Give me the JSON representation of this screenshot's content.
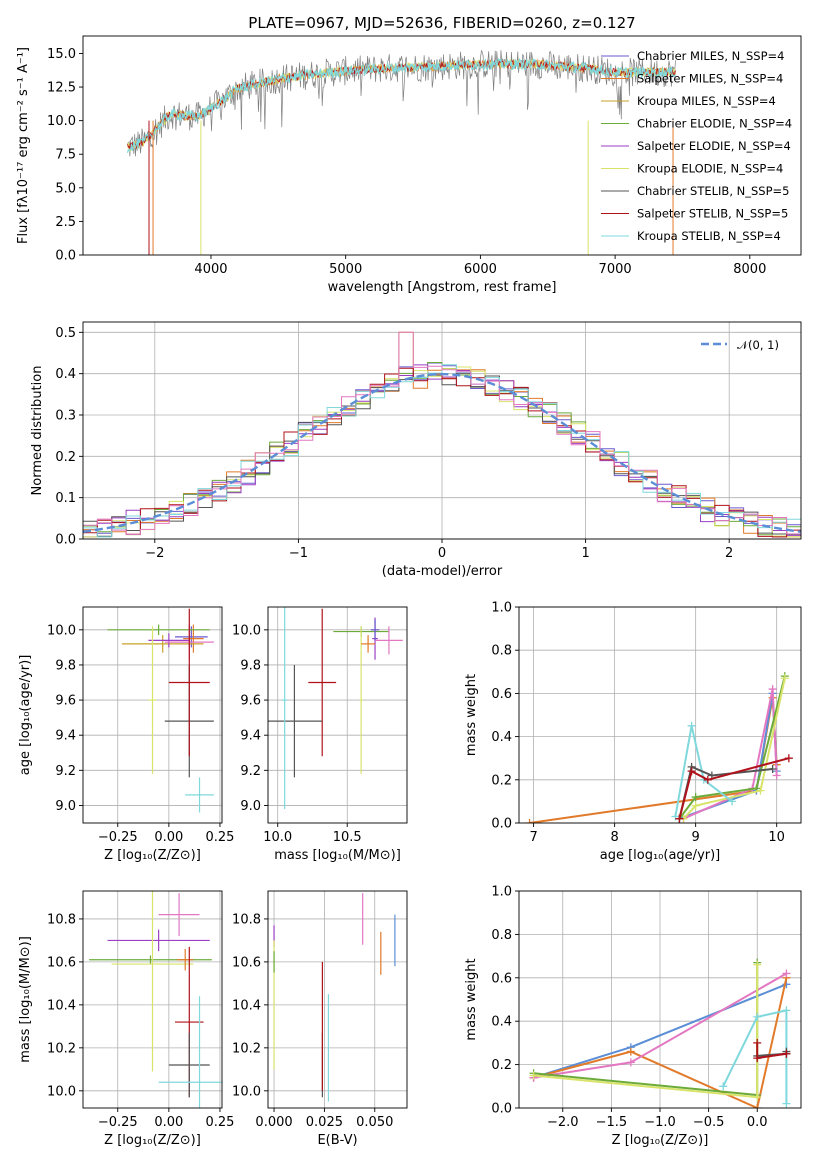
{
  "colors": {
    "cm": "#6a5acd",
    "sm": "#e17a2a",
    "km": "#c8a02a",
    "ce": "#6cab3a",
    "se": "#9b3fc4",
    "ke": "#d8e36a",
    "cs": "#555555",
    "ss": "#b0121b",
    "ks": "#7fd8dc",
    "pink": "#e377c2",
    "blue": "#5b8ed6",
    "normal": "#5b8ed6",
    "gray_spec": "#7f7f7f"
  },
  "chart_data": [
    {
      "id": "spectrum",
      "type": "line",
      "title": "PLATE=0967, MJD=52636, FIBERID=0260, z=0.127",
      "xlabel": "wavelength [Angstrom, rest frame]",
      "ylabel": "Flux [fλ10⁻¹⁷ erg cm⁻² s⁻¹ A⁻¹]",
      "xlim": [
        3050,
        8380
      ],
      "ylim": [
        0,
        16.3
      ],
      "xticks": [
        "4000",
        "5000",
        "6000",
        "7000",
        "8000"
      ],
      "xtick_vals": [
        4000,
        5000,
        6000,
        7000,
        8000
      ],
      "yticks": [
        "0.0",
        "2.5",
        "5.0",
        "7.5",
        "10.0",
        "12.5",
        "15.0"
      ],
      "ytick_vals": [
        0,
        2.5,
        5,
        7.5,
        10,
        12.5,
        15
      ],
      "continuum_x": [
        3380,
        3500,
        3700,
        3900,
        4000,
        4200,
        4500,
        4800,
        5000,
        5300,
        5600,
        6000,
        6400,
        6800,
        7000,
        7200,
        7450
      ],
      "continuum_y": [
        8.0,
        8.4,
        10.5,
        10.3,
        10.9,
        12.4,
        13.1,
        13.5,
        13.7,
        13.9,
        14.0,
        14.2,
        14.2,
        13.9,
        13.6,
        13.6,
        13.6
      ],
      "series": [
        {
          "name": "Chabrier MILES, N_SSP=4",
          "key": "cm"
        },
        {
          "name": "Salpeter MILES, N_SSP=4",
          "key": "sm"
        },
        {
          "name": "Kroupa MILES, N_SSP=4",
          "key": "km"
        },
        {
          "name": "Chabrier ELODIE, N_SSP=4",
          "key": "ce"
        },
        {
          "name": "Salpeter ELODIE, N_SSP=4",
          "key": "se"
        },
        {
          "name": "Kroupa ELODIE, N_SSP=4",
          "key": "ke"
        },
        {
          "name": "Chabrier STELIB, N_SSP=5",
          "key": "cs"
        },
        {
          "name": "Salpeter STELIB, N_SSP=5",
          "key": "ss"
        },
        {
          "name": "Kroupa STELIB, N_SSP=4",
          "key": "ks"
        }
      ]
    },
    {
      "id": "residuals",
      "type": "line",
      "xlabel": "(data-model)/error",
      "ylabel": "Normed distribution",
      "xlim": [
        -2.5,
        2.5
      ],
      "ylim": [
        0,
        0.525
      ],
      "xticks": [
        "−2",
        "−1",
        "0",
        "1",
        "2"
      ],
      "xtick_vals": [
        -2,
        -1,
        0,
        1,
        2
      ],
      "yticks": [
        "0.0",
        "0.1",
        "0.2",
        "0.3",
        "0.4",
        "0.5"
      ],
      "ytick_vals": [
        0,
        0.1,
        0.2,
        0.3,
        0.4,
        0.5
      ],
      "legend": "𝒩(0, 1)"
    },
    {
      "id": "age_vs_Z",
      "type": "scatter",
      "xlabel": "Z [log₁₀(Z/Z⊙)]",
      "ylabel": "age  [log₁₀(age/yr)]",
      "xlim": [
        -0.42,
        0.26
      ],
      "ylim": [
        8.9,
        10.13
      ],
      "xticks": [
        "−0.25",
        "0.00",
        "0.25"
      ],
      "xtick_vals": [
        -0.25,
        0,
        0.25
      ],
      "yticks": [
        "9.0",
        "9.2",
        "9.4",
        "9.6",
        "9.8",
        "10.0"
      ],
      "ytick_vals": [
        9.0,
        9.2,
        9.4,
        9.6,
        9.8,
        10.0
      ],
      "points": [
        {
          "key": "cm",
          "x": 0.11,
          "y": 9.96,
          "xe": 0.08,
          "ye": 0.06
        },
        {
          "key": "sm",
          "x": 0.12,
          "y": 9.95,
          "xe": 0.05,
          "ye": 0.08
        },
        {
          "key": "km",
          "x": -0.03,
          "y": 9.92,
          "xe": 0.2,
          "ye": 0.05
        },
        {
          "key": "ce",
          "x": -0.05,
          "y": 10.0,
          "xe": 0.25,
          "ye": 0.03
        },
        {
          "key": "se",
          "x": 0.0,
          "y": 9.94,
          "xe": 0.1,
          "ye": 0.04
        },
        {
          "key": "ke",
          "x": -0.08,
          "y": 9.6,
          "xe": 0.02,
          "ye": 0.42
        },
        {
          "key": "pink",
          "x": 0.1,
          "y": 9.93,
          "xe": 0.12,
          "ye": 0.1
        },
        {
          "key": "ks",
          "x": 0.15,
          "y": 9.06,
          "xe": 0.07,
          "ye": 0.1
        },
        {
          "key": "cs",
          "x": 0.1,
          "y": 9.48,
          "xe": 0.12,
          "ye": 0.32
        },
        {
          "key": "ss",
          "x": 0.1,
          "y": 9.7,
          "xe": 0.1,
          "ye": 0.42
        }
      ]
    },
    {
      "id": "age_vs_mass",
      "type": "scatter",
      "xlabel": "mass [log₁₀(M/M⊙)]",
      "ylabel": "",
      "xlim": [
        9.93,
        10.93
      ],
      "ylim": [
        8.9,
        10.13
      ],
      "xticks": [
        "10.0",
        "10.5"
      ],
      "xtick_vals": [
        10.0,
        10.5
      ],
      "yticks": [
        "9.0",
        "9.2",
        "9.4",
        "9.6",
        "9.8",
        "10.0"
      ],
      "ytick_vals": [
        9.0,
        9.2,
        9.4,
        9.6,
        9.8,
        10.0
      ],
      "points": [
        {
          "key": "ce",
          "x": 10.6,
          "y": 9.99,
          "xe": 0.2,
          "ye": 0.03
        },
        {
          "key": "ke",
          "x": 10.6,
          "y": 9.6,
          "xe": 0.01,
          "ye": 0.42
        },
        {
          "key": "se",
          "x": 10.7,
          "y": 9.95,
          "xe": 0.02,
          "ye": 0.12
        },
        {
          "key": "pink",
          "x": 10.8,
          "y": 9.94,
          "xe": 0.1,
          "ye": 0.08
        },
        {
          "key": "sm",
          "x": 10.65,
          "y": 9.92,
          "xe": 0.05,
          "ye": 0.05
        },
        {
          "key": "cm",
          "x": 10.7,
          "y": 10.0,
          "xe": 0.03,
          "ye": 0.06
        },
        {
          "key": "ss",
          "x": 10.32,
          "y": 9.7,
          "xe": 0.1,
          "ye": 0.42
        },
        {
          "key": "cs",
          "x": 10.12,
          "y": 9.48,
          "xe": 0.2,
          "ye": 0.32
        },
        {
          "key": "ks",
          "x": 10.05,
          "y": 9.6,
          "xe": 0.02,
          "ye": 0.62
        }
      ]
    },
    {
      "id": "weight_vs_age",
      "type": "line",
      "xlabel": "age  [log₁₀(age/yr)]",
      "ylabel": "mass weight",
      "xlim": [
        6.82,
        10.3
      ],
      "ylim": [
        0,
        1
      ],
      "xticks": [
        "7",
        "8",
        "9",
        "10"
      ],
      "xtick_vals": [
        7,
        8,
        9,
        10
      ],
      "yticks": [
        "0.0",
        "0.2",
        "0.4",
        "0.6",
        "0.8",
        "1.0"
      ],
      "ytick_vals": [
        0,
        0.2,
        0.4,
        0.6,
        0.8,
        1.0
      ],
      "series": [
        {
          "key": "sm",
          "x": [
            6.95,
            9.75,
            9.95,
            10.0
          ],
          "y": [
            0.0,
            0.15,
            0.58,
            0.27
          ]
        },
        {
          "key": "blue",
          "x": [
            8.8,
            9.75,
            9.95,
            10.0
          ],
          "y": [
            0.02,
            0.15,
            0.6,
            0.24
          ]
        },
        {
          "key": "pink",
          "x": [
            8.85,
            9.7,
            9.95,
            10.0
          ],
          "y": [
            0.02,
            0.16,
            0.62,
            0.22
          ]
        },
        {
          "key": "ce",
          "x": [
            8.8,
            9.0,
            9.75,
            10.1
          ],
          "y": [
            0.02,
            0.12,
            0.16,
            0.68
          ]
        },
        {
          "key": "ke",
          "x": [
            8.85,
            9.0,
            9.8,
            10.1
          ],
          "y": [
            0.02,
            0.08,
            0.15,
            0.67
          ]
        },
        {
          "key": "ks",
          "x": [
            8.75,
            8.95,
            9.1,
            9.45
          ],
          "y": [
            0.03,
            0.45,
            0.2,
            0.1
          ]
        },
        {
          "key": "cs",
          "x": [
            8.8,
            8.95,
            9.2,
            9.95
          ],
          "y": [
            0.02,
            0.26,
            0.22,
            0.25
          ]
        },
        {
          "key": "ss",
          "x": [
            8.8,
            8.95,
            9.15,
            10.15
          ],
          "y": [
            0.02,
            0.24,
            0.2,
            0.3
          ]
        }
      ]
    },
    {
      "id": "mass_vs_Z",
      "type": "scatter",
      "xlabel": "Z [log₁₀(Z/Z⊙)]",
      "ylabel": "mass [log₁₀(M/M⊙)]",
      "xlim": [
        -0.42,
        0.26
      ],
      "ylim": [
        9.92,
        10.93
      ],
      "xticks": [
        "−0.25",
        "0.00",
        "0.25"
      ],
      "xtick_vals": [
        -0.25,
        0,
        0.25
      ],
      "yticks": [
        "10.0",
        "10.2",
        "10.4",
        "10.6",
        "10.8"
      ],
      "ytick_vals": [
        10.0,
        10.2,
        10.4,
        10.6,
        10.8
      ],
      "points": [
        {
          "key": "pink",
          "x": 0.05,
          "y": 10.82,
          "xe": 0.1,
          "ye": 0.1
        },
        {
          "key": "se",
          "x": -0.05,
          "y": 10.7,
          "xe": 0.25,
          "ye": 0.05
        },
        {
          "key": "ce",
          "x": -0.09,
          "y": 10.61,
          "xe": 0.3,
          "ye": 0.02
        },
        {
          "key": "ke",
          "x": -0.08,
          "y": 10.59,
          "xe": 0.2,
          "ye": 0.5
        },
        {
          "key": "sm",
          "x": 0.08,
          "y": 10.61,
          "xe": 0.04,
          "ye": 0.05
        },
        {
          "key": "ss",
          "x": 0.1,
          "y": 10.32,
          "xe": 0.07,
          "ye": 0.35
        },
        {
          "key": "cs",
          "x": 0.1,
          "y": 10.12,
          "xe": 0.1,
          "ye": 0.15
        },
        {
          "key": "ks",
          "x": 0.15,
          "y": 10.04,
          "xe": 0.2,
          "ye": 0.4
        }
      ]
    },
    {
      "id": "mass_vs_EBV",
      "type": "scatter",
      "xlabel": "E(B-V)",
      "ylabel": "",
      "xlim": [
        -0.003,
        0.066
      ],
      "ylim": [
        9.92,
        10.93
      ],
      "xticks": [
        "0.000",
        "0.025",
        "0.050"
      ],
      "xtick_vals": [
        0,
        0.025,
        0.05
      ],
      "yticks": [
        "10.0",
        "10.2",
        "10.4",
        "10.6",
        "10.8"
      ],
      "ytick_vals": [
        10.0,
        10.2,
        10.4,
        10.6,
        10.8
      ],
      "points": [
        {
          "key": "se",
          "x": 0.0,
          "y": 10.72,
          "xe": 0,
          "ye": 0.05
        },
        {
          "key": "ke",
          "x": 0.0,
          "y": 10.4,
          "xe": 0,
          "ye": 0.3
        },
        {
          "key": "ce",
          "x": 0.0,
          "y": 10.6,
          "xe": 0,
          "ye": 0.05
        },
        {
          "key": "cs",
          "x": 0.024,
          "y": 10.12,
          "xe": 0,
          "ye": 0.15
        },
        {
          "key": "ss",
          "x": 0.024,
          "y": 10.3,
          "xe": 0,
          "ye": 0.3
        },
        {
          "key": "ks",
          "x": 0.027,
          "y": 10.2,
          "xe": 0,
          "ye": 0.25
        },
        {
          "key": "pink",
          "x": 0.044,
          "y": 10.8,
          "xe": 0,
          "ye": 0.12
        },
        {
          "key": "sm",
          "x": 0.053,
          "y": 10.64,
          "xe": 0,
          "ye": 0.1
        },
        {
          "key": "blue",
          "x": 0.06,
          "y": 10.7,
          "xe": 0,
          "ye": 0.12
        }
      ]
    },
    {
      "id": "weight_vs_Z",
      "type": "line",
      "xlabel": "Z [log₁₀(Z/Z⊙)]",
      "ylabel": "mass weight",
      "xlim": [
        -2.45,
        0.45
      ],
      "ylim": [
        0,
        1
      ],
      "xticks": [
        "−2.0",
        "−1.5",
        "−1.0",
        "−0.5",
        "0.0"
      ],
      "xtick_vals": [
        -2,
        -1.5,
        -1,
        -0.5,
        0
      ],
      "yticks": [
        "0.0",
        "0.2",
        "0.4",
        "0.6",
        "0.8",
        "1.0"
      ],
      "ytick_vals": [
        0,
        0.2,
        0.4,
        0.6,
        0.8,
        1.0
      ],
      "series": [
        {
          "key": "blue",
          "x": [
            -2.3,
            -1.3,
            0.3
          ],
          "y": [
            0.14,
            0.28,
            0.57
          ]
        },
        {
          "key": "sm",
          "x": [
            -2.3,
            -1.3,
            0.0,
            0.3
          ],
          "y": [
            0.14,
            0.26,
            0.0,
            0.6
          ]
        },
        {
          "key": "pink",
          "x": [
            -2.3,
            -1.3,
            0.3
          ],
          "y": [
            0.14,
            0.21,
            0.62
          ]
        },
        {
          "key": "ce",
          "x": [
            -2.3,
            0.0,
            0.0
          ],
          "y": [
            0.16,
            0.06,
            0.67
          ]
        },
        {
          "key": "ke",
          "x": [
            -2.3,
            0.0,
            0.0
          ],
          "y": [
            0.15,
            0.05,
            0.66
          ]
        },
        {
          "key": "ks",
          "x": [
            -0.35,
            0.0,
            0.3,
            0.3
          ],
          "y": [
            0.1,
            0.42,
            0.45,
            0.02
          ]
        },
        {
          "key": "cs",
          "x": [
            0.0,
            0.3,
            0.3
          ],
          "y": [
            0.24,
            0.25,
            0.26
          ]
        },
        {
          "key": "ss",
          "x": [
            0.0,
            0.0,
            0.3
          ],
          "y": [
            0.3,
            0.23,
            0.25
          ]
        }
      ]
    }
  ]
}
